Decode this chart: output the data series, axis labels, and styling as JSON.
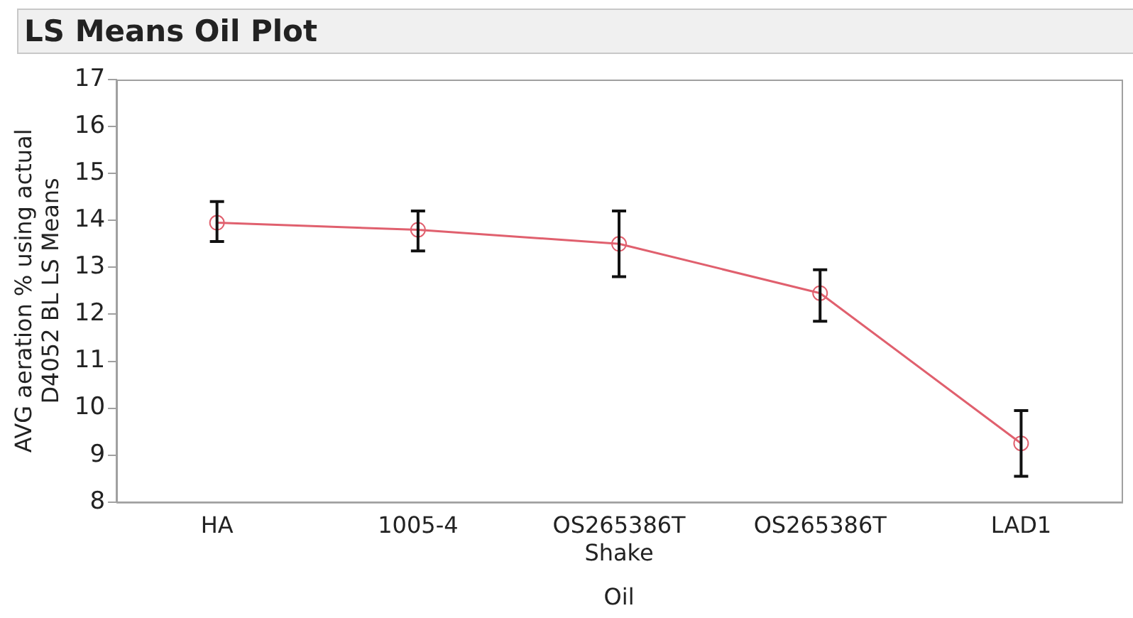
{
  "chart_data": {
    "type": "line",
    "title": "LS Means Oil Plot",
    "xlabel": "Oil",
    "ylabel": "AVG aeration % using actual D4052 BL LS Means",
    "categories": [
      "HA",
      "1005-4",
      "OS265386T Shake",
      "OS265386T",
      "LAD1"
    ],
    "series": [
      {
        "color": "#e0606e",
        "values": [
          13.95,
          13.8,
          13.5,
          12.45,
          9.25
        ],
        "errors": [
          [
            13.55,
            14.4
          ],
          [
            13.35,
            14.2
          ],
          [
            12.8,
            14.2
          ],
          [
            11.85,
            12.95
          ],
          [
            8.55,
            9.95
          ]
        ]
      }
    ],
    "ylim": [
      8,
      17
    ],
    "yticks": [
      8,
      9,
      10,
      11,
      12,
      13,
      14,
      15,
      16,
      17
    ],
    "grid": false,
    "legend": false,
    "marker": "circle",
    "line_style": "solid"
  }
}
